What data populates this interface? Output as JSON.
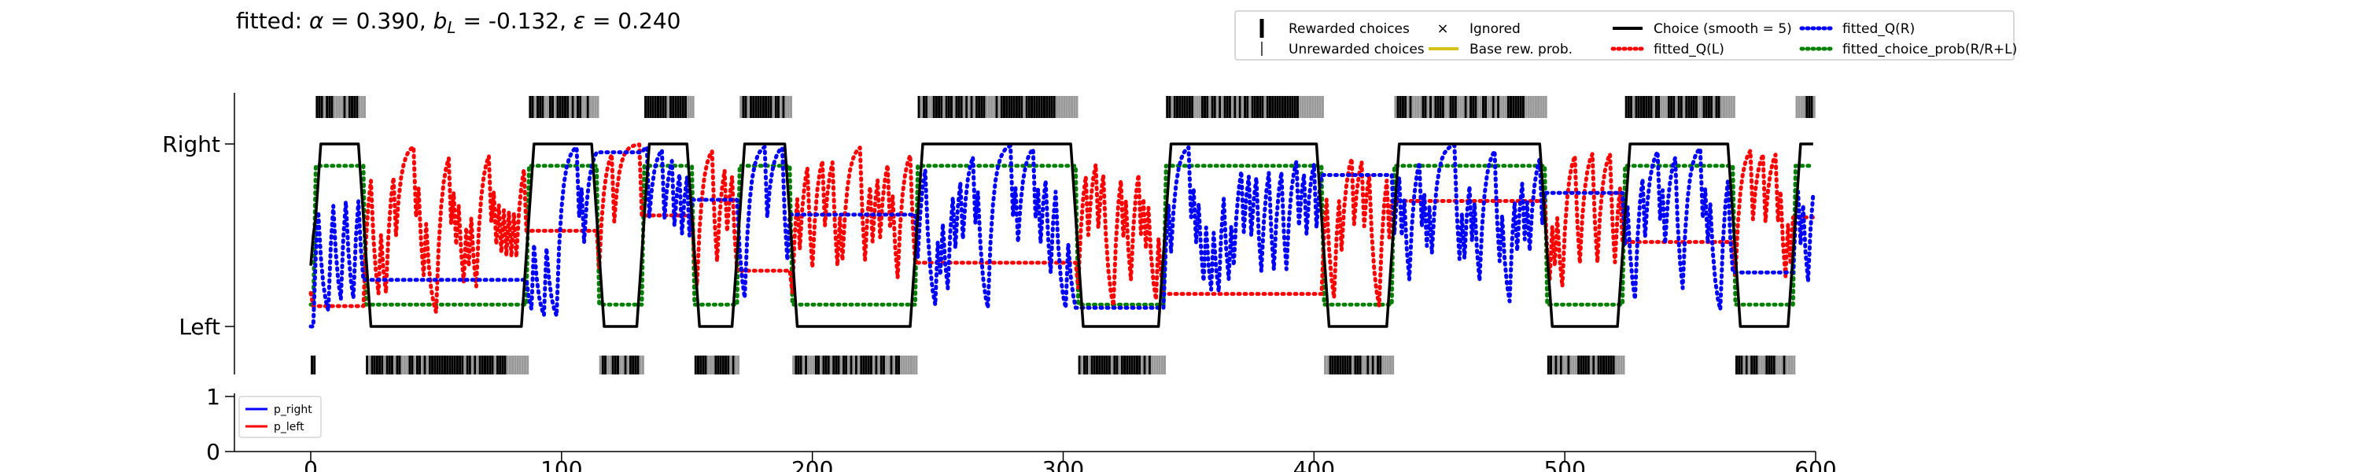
{
  "figure": {
    "title_prefix": "fitted: ",
    "title_parts": [
      {
        "sym": "α",
        "val": " = 0.390, "
      },
      {
        "sym": "b",
        "sub": "L",
        "val": " = -0.132, "
      },
      {
        "sym": "ε",
        "val": " = 0.240"
      }
    ]
  },
  "legend_top": {
    "items": [
      {
        "label": "Rewarded choices",
        "marker": "bar-black",
        "color": "#000000"
      },
      {
        "label": "Unrewarded choices",
        "marker": "bar-thin",
        "color": "#555555"
      },
      {
        "label": "Ignored",
        "marker": "x",
        "color": "#e41a1c"
      },
      {
        "label": "Base rew. prob.",
        "marker": "line",
        "color": "#d4c21a"
      },
      {
        "label": "Choice (smooth = 5)",
        "marker": "line",
        "color": "#000000"
      },
      {
        "label": "fitted_Q(L)",
        "marker": "dotted",
        "color": "#ff0000"
      },
      {
        "label": "fitted_Q(R)",
        "marker": "dotted",
        "color": "#0000ff"
      },
      {
        "label": "fitted_choice_prob(R/R+L)",
        "marker": "dotted",
        "color": "#008000"
      }
    ]
  },
  "legend_bottom": {
    "items": [
      {
        "label": "p_right",
        "color": "#0000ff"
      },
      {
        "label": "p_left",
        "color": "#ff0000"
      }
    ]
  },
  "chart_data": [
    {
      "type": "line",
      "xlim": [
        0,
        600
      ],
      "ylim": [
        -0.15,
        1.1
      ],
      "ytick_labels": [
        "Left",
        "Right"
      ],
      "yticks": [
        0,
        1
      ],
      "grid": false,
      "legend_position": "top-right (above axes)",
      "blocks_right": [
        [
          2,
          22
        ],
        [
          87,
          115
        ],
        [
          133,
          153
        ],
        [
          171,
          192
        ],
        [
          242,
          306
        ],
        [
          341,
          404
        ],
        [
          432,
          493
        ],
        [
          524,
          568
        ],
        [
          592,
          600
        ]
      ],
      "blocks_left": [
        [
          0,
          2
        ],
        [
          22,
          87
        ],
        [
          115,
          133
        ],
        [
          153,
          171
        ],
        [
          192,
          242
        ],
        [
          306,
          341
        ],
        [
          404,
          432
        ],
        [
          493,
          524
        ],
        [
          568,
          592
        ]
      ],
      "series": [
        {
          "name": "Choice (smooth = 5)",
          "color": "#000000",
          "style": "solid"
        },
        {
          "name": "fitted_Q(L)",
          "color": "#ff0000",
          "style": "dotted"
        },
        {
          "name": "fitted_Q(R)",
          "color": "#0000ff",
          "style": "dotted"
        },
        {
          "name": "fitted_choice_prob(R/R+L)",
          "color": "#008000",
          "style": "dotted"
        }
      ]
    },
    {
      "type": "line",
      "xlim": [
        0,
        600
      ],
      "ylim": [
        0,
        1
      ],
      "yticks": [
        0,
        1
      ],
      "xticks": [
        0,
        100,
        200,
        300,
        400,
        500,
        600
      ],
      "legend_position": "top-left",
      "series": [
        {
          "name": "p_right",
          "color": "#0000ff"
        },
        {
          "name": "p_left",
          "color": "#ff0000"
        }
      ]
    }
  ]
}
